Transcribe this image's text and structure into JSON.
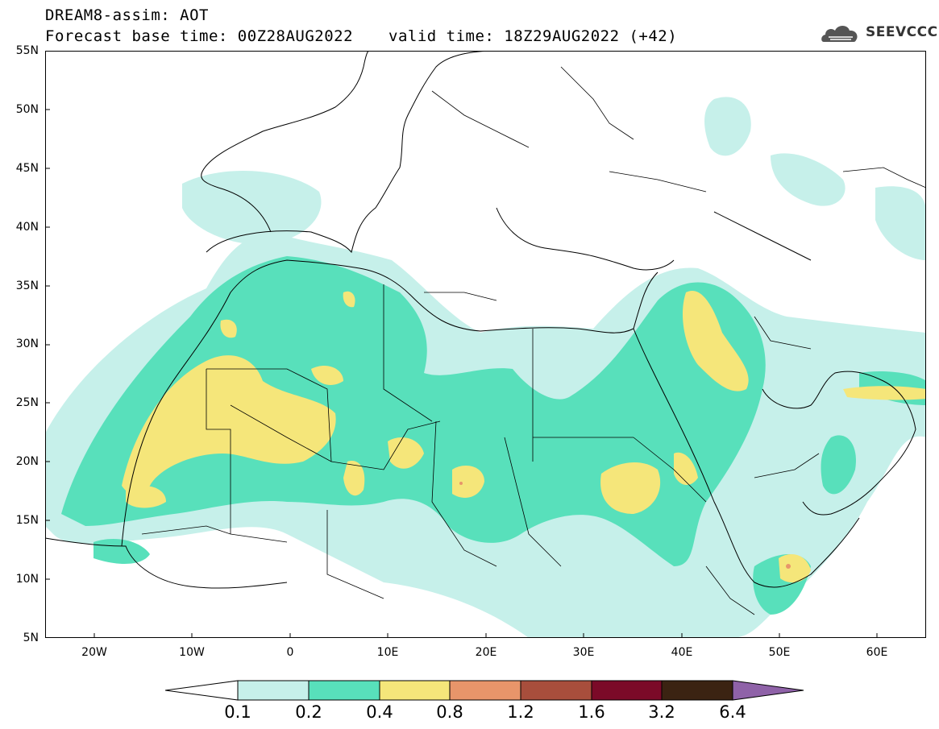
{
  "header": {
    "line1": "DREAM8-assim: AOT",
    "base_time": "Forecast base time: 00Z28AUG2022",
    "valid_time": "valid time: 18Z29AUG2022 (+42)"
  },
  "logo": {
    "text": "SEEVCCC",
    "icon": "cloud-logo-icon"
  },
  "map": {
    "lat_labels": [
      "55N",
      "50N",
      "45N",
      "40N",
      "35N",
      "30N",
      "25N",
      "20N",
      "15N",
      "10N",
      "5N"
    ],
    "lon_labels": [
      "20W",
      "10W",
      "0",
      "10E",
      "20E",
      "30E",
      "40E",
      "50E",
      "60E"
    ],
    "lat_range": [
      5,
      55
    ],
    "lon_range": [
      -25,
      65
    ],
    "projection": "lat-lon",
    "grid": false
  },
  "colorbar": {
    "labels": [
      "0.1",
      "0.2",
      "0.4",
      "0.8",
      "1.2",
      "1.6",
      "3.2",
      "6.4"
    ],
    "colors": {
      "below": "#ffffff",
      "c1": "#c6f0ea",
      "c2": "#58e0bb",
      "c3": "#f5e67a",
      "c4": "#e8956a",
      "c5": "#a84e3c",
      "c6": "#7b0a28",
      "c7": "#3b2312",
      "above": "#8f62a8"
    }
  }
}
